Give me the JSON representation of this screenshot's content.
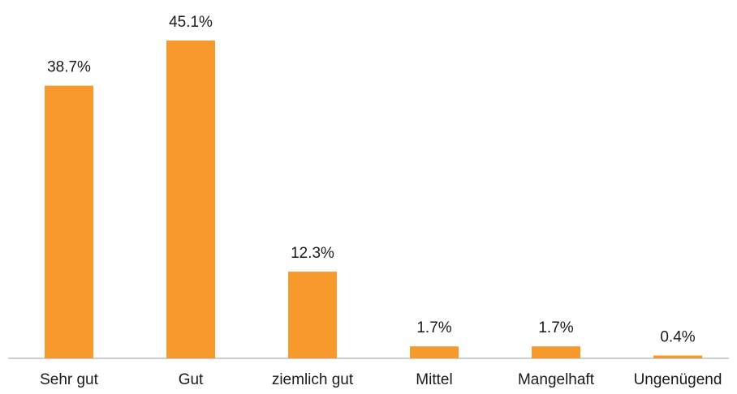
{
  "chart_data": {
    "type": "bar",
    "categories": [
      "Sehr gut",
      "Gut",
      "ziemlich gut",
      "Mittel",
      "Mangelhaft",
      "Ungenügend"
    ],
    "values": [
      38.7,
      45.1,
      12.3,
      1.7,
      1.7,
      0.4
    ],
    "value_labels": [
      "38.7%",
      "45.1%",
      "12.3%",
      "1.7%",
      "1.7%",
      "0.4%"
    ],
    "color": "#f7992c"
  }
}
